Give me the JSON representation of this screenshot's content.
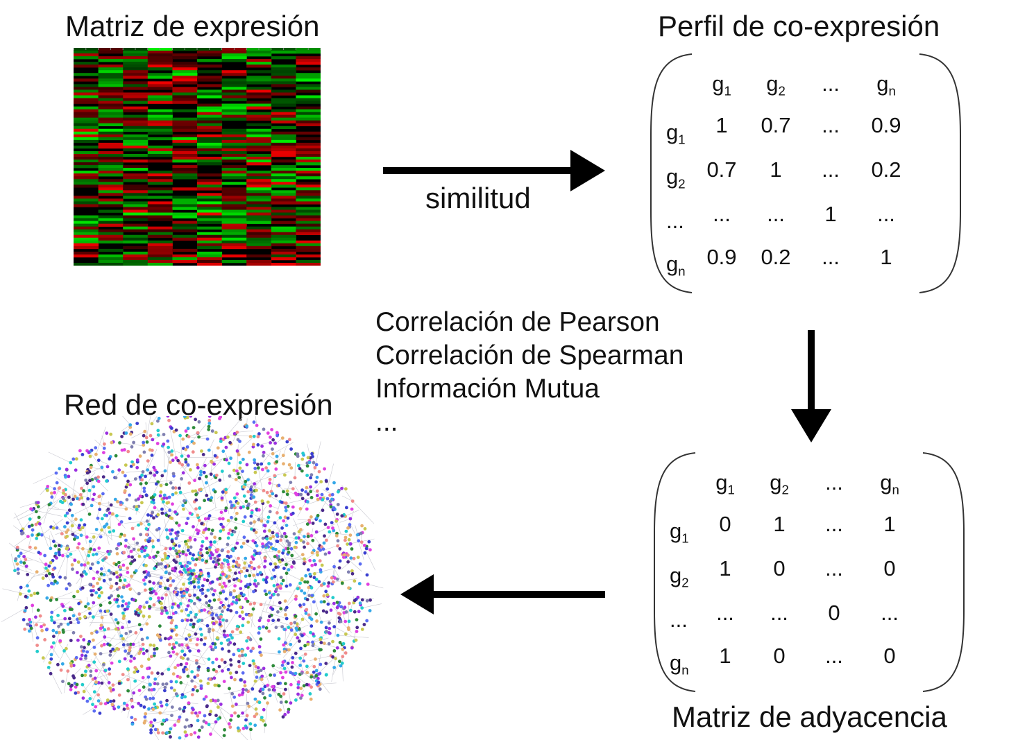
{
  "titles": {
    "expression_matrix": "Matriz de expresión",
    "coexpression_profile": "Perfil de co-expresión",
    "coexpression_network": "Red de co-expresión",
    "adjacency_matrix": "Matriz de adyacencia"
  },
  "similarity_label": "similitud",
  "methods": [
    "Correlación de Pearson",
    "Correlación de Spearman",
    "Información Mutua",
    "..."
  ],
  "profile_matrix": {
    "columns": [
      "g1",
      "g2",
      "...",
      "gn"
    ],
    "rows": [
      {
        "label": "g1",
        "values": [
          "1",
          "0.7",
          "...",
          "0.9"
        ]
      },
      {
        "label": "g2",
        "values": [
          "0.7",
          "1",
          "...",
          "0.2"
        ]
      },
      {
        "label": "...",
        "values": [
          "...",
          "...",
          "1",
          "..."
        ]
      },
      {
        "label": "gn",
        "values": [
          "0.9",
          "0.2",
          "...",
          "1"
        ]
      }
    ]
  },
  "adjacency_matrix": {
    "columns": [
      "g1",
      "g2",
      "...",
      "gn"
    ],
    "rows": [
      {
        "label": "g1",
        "values": [
          "0",
          "1",
          "...",
          "1"
        ]
      },
      {
        "label": "g2",
        "values": [
          "1",
          "0",
          "...",
          "0"
        ]
      },
      {
        "label": "...",
        "values": [
          "...",
          "...",
          "0",
          "..."
        ]
      },
      {
        "label": "gn",
        "values": [
          "1",
          "0",
          "...",
          "0"
        ]
      }
    ]
  },
  "colors": {
    "heatmap_high": "#00d400",
    "heatmap_low": "#d40000",
    "heatmap_base": "#000000",
    "network_node_palette": [
      "#3a3fd0",
      "#5b6cf2",
      "#9b30e0",
      "#e040e0",
      "#35a8e8",
      "#f08c8c",
      "#e8b070",
      "#2e8b3a",
      "#7f7fb0",
      "#c8c850",
      "#4a2a8a",
      "#22cccc"
    ],
    "network_edge": "#c8c8d0",
    "arrow": "#000000"
  },
  "icons": {
    "arrow_right": "arrow-right-icon",
    "arrow_down": "arrow-down-icon",
    "arrow_left": "arrow-left-icon"
  }
}
